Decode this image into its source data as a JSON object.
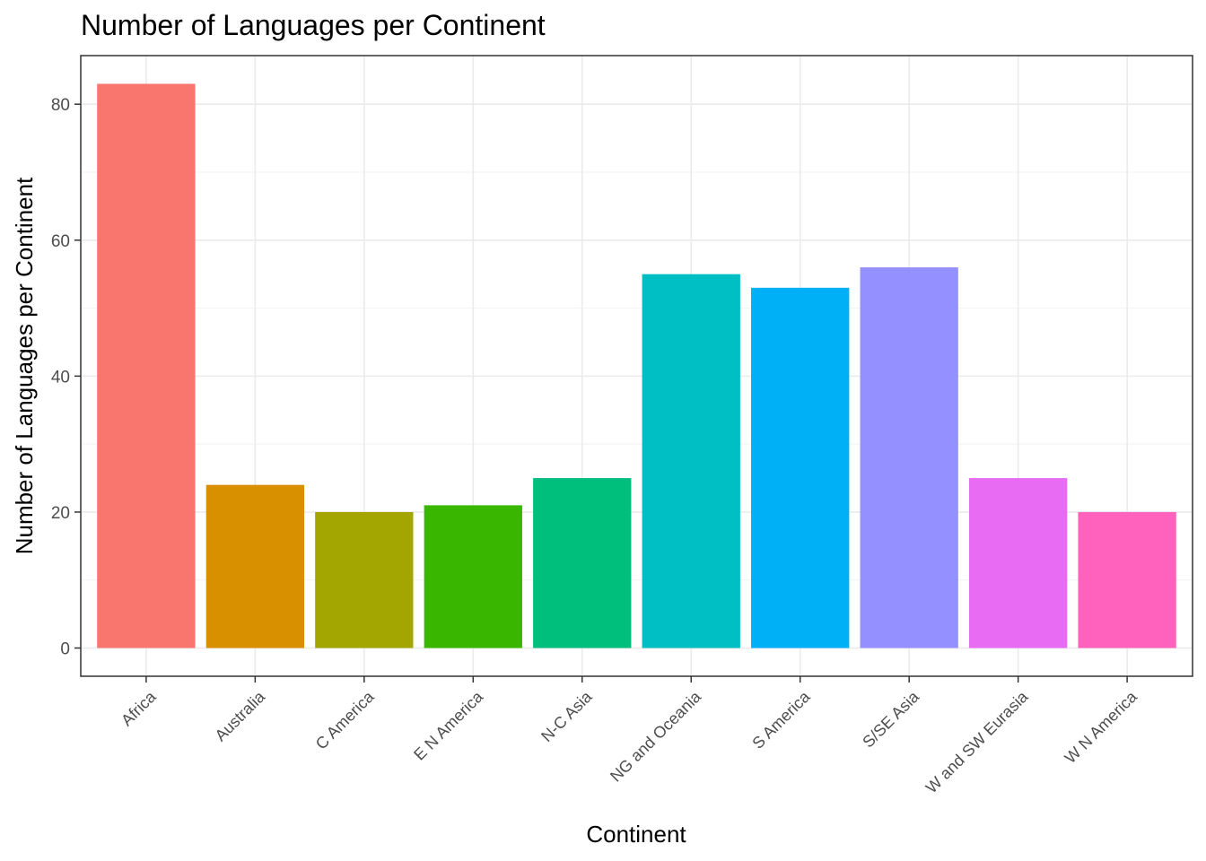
{
  "chart_data": {
    "type": "bar",
    "title": "Number of Languages per Continent",
    "xlabel": "Continent",
    "ylabel": "Number of Languages per Continent",
    "categories": [
      "Africa",
      "Australia",
      "C America",
      "E N America",
      "N-C Asia",
      "NG and Oceania",
      "S America",
      "S/SE Asia",
      "W and SW Eurasia",
      "W N America"
    ],
    "values": [
      83,
      24,
      20,
      21,
      25,
      55,
      53,
      56,
      25,
      20
    ],
    "colors": [
      "#F8766D",
      "#D89000",
      "#A3A500",
      "#39B600",
      "#00BF7D",
      "#00BFC4",
      "#00B0F6",
      "#9590FF",
      "#E76BF3",
      "#FF62BC"
    ],
    "ylim": [
      -4.15,
      87.15
    ],
    "yticks": [
      0,
      20,
      40,
      60,
      80
    ],
    "grid": true,
    "legend": "none"
  }
}
